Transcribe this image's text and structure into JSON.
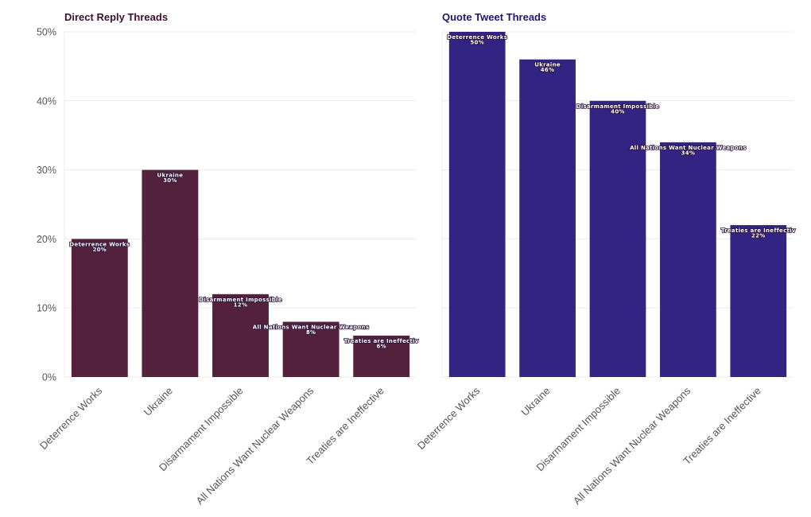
{
  "chart_data": [
    {
      "type": "bar",
      "title": "Direct Reply Threads",
      "color": "#54213d",
      "title_color": "#3d1030",
      "categories": [
        "Deterrence Works",
        "Ukraine",
        "Disarmament Impossible",
        "All Nations Want Nuclear Weapons",
        "Treaties are Ineffective"
      ],
      "values": [
        20,
        30,
        12,
        8,
        6
      ],
      "bar_labels": [
        "Deterrence Works",
        "Ukraine",
        "Disarmament Impossible",
        "All Nations Want Nuclear Weapons",
        "Treaties are Ineffectiv"
      ],
      "value_labels": [
        "20%",
        "30%",
        "12%",
        "8%",
        "6%"
      ],
      "ylim": [
        0,
        50
      ],
      "yticks": [
        0,
        10,
        20,
        30,
        40,
        50
      ],
      "ytick_labels": [
        "0%",
        "10%",
        "20%",
        "30%",
        "40%",
        "50%"
      ],
      "xlabel": "",
      "ylabel": ""
    },
    {
      "type": "bar",
      "title": "Quote Tweet Threads",
      "color": "#332484",
      "title_color": "#22166a",
      "categories": [
        "Deterrence Works",
        "Ukraine",
        "Disarmament Impossible",
        "All Nations Want Nuclear Weapons",
        "Treaties are Ineffective"
      ],
      "values": [
        50,
        46,
        40,
        34,
        22
      ],
      "bar_labels": [
        "Deterrence Works",
        "Ukraine",
        "Disarmament Impossible",
        "All Nations Want Nuclear Weapons",
        "Treaties are Ineffectiv"
      ],
      "value_labels": [
        "50%",
        "46%",
        "40%",
        "34%",
        "22%"
      ],
      "ylim": [
        0,
        50
      ],
      "yticks": [
        0,
        10,
        20,
        30,
        40,
        50
      ],
      "ytick_labels": [],
      "xlabel": "",
      "ylabel": ""
    }
  ]
}
